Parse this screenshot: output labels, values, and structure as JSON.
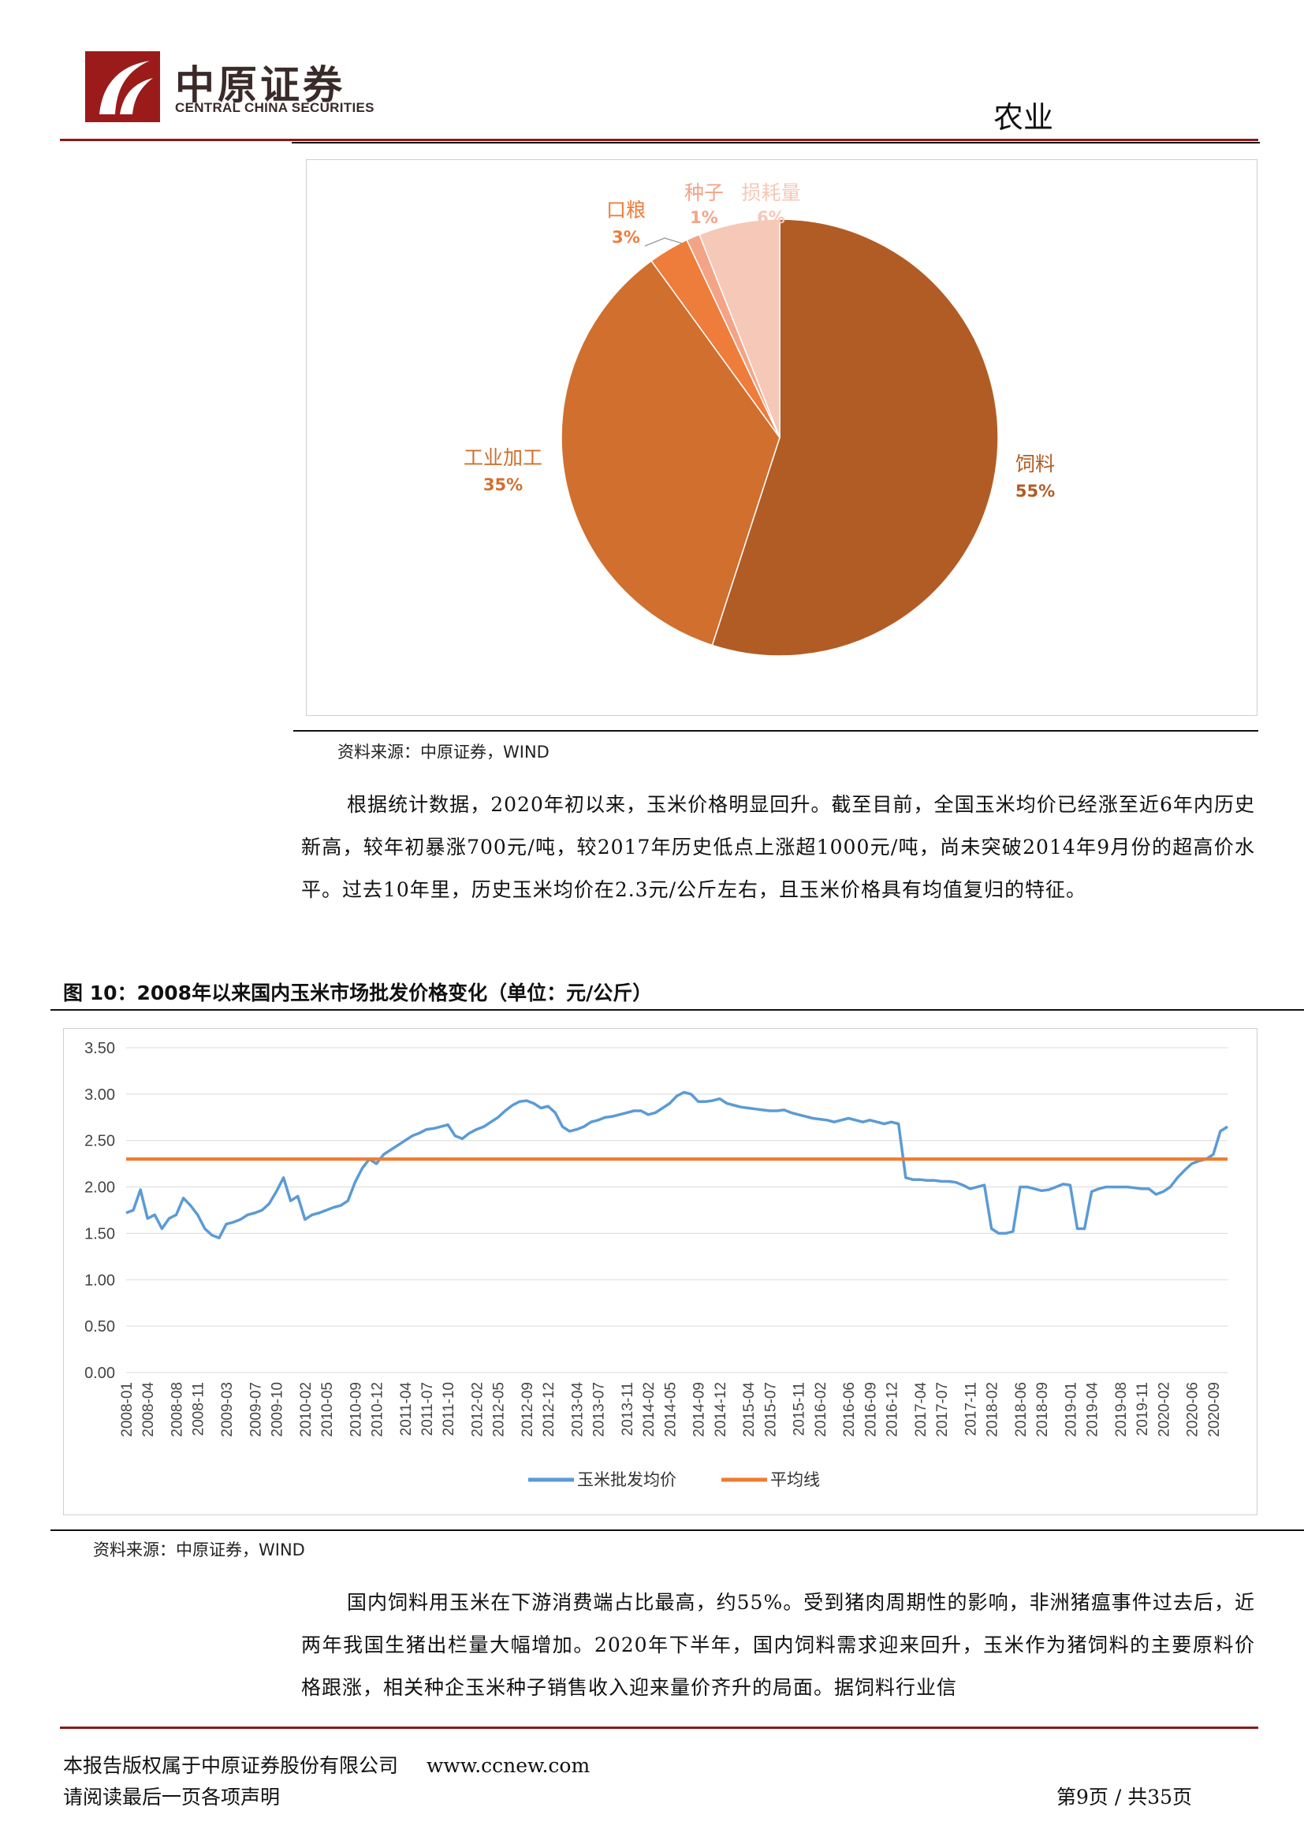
{
  "header": {
    "logo_cn": "中原证券",
    "logo_en": "CENTRAL CHINA SECURITIES",
    "industry": "农业"
  },
  "pie_chart": {
    "chart_data": {
      "type": "pie",
      "title": "",
      "slices": [
        {
          "label": "饲料",
          "pct_label": "55%",
          "value": 55,
          "color": "#b25c25"
        },
        {
          "label": "工业加工",
          "pct_label": "35%",
          "value": 35,
          "color": "#d16f2e"
        },
        {
          "label": "口粮",
          "pct_label": "3%",
          "value": 3,
          "color": "#ee7c3a"
        },
        {
          "label": "种子",
          "pct_label": "1%",
          "value": 1,
          "color": "#f4a486"
        },
        {
          "label": "损耗量",
          "pct_label": "6%",
          "value": 6,
          "color": "#f5c8b8"
        }
      ],
      "legend": "none"
    },
    "source": "资料来源：中原证券，WIND"
  },
  "paragraph1": "根据统计数据，2020年初以来，玉米价格明显回升。截至目前，全国玉米均价已经涨至近6年内历史新高，较年初暴涨700元/吨，较2017年历史低点上涨超1000元/吨，尚未突破2014年9月份的超高价水平。过去10年里，历史玉米均价在2.3元/公斤左右，且玉米价格具有均值复归的特征。",
  "line_chart": {
    "figure_title": "图 10：2008年以来国内玉米市场批发价格变化（单位：元/公斤）",
    "source": "资料来源：中原证券，WIND",
    "chart_data": {
      "type": "line",
      "ylim": [
        0,
        3.5
      ],
      "y_ticks": [
        "0.00",
        "0.50",
        "1.00",
        "1.50",
        "2.00",
        "2.50",
        "3.00",
        "3.50"
      ],
      "x_ticks": [
        "2008-01",
        "2008-04",
        "2008-08",
        "2008-11",
        "2009-03",
        "2009-07",
        "2009-10",
        "2010-02",
        "2010-05",
        "2010-09",
        "2010-12",
        "2011-04",
        "2011-07",
        "2011-10",
        "2012-02",
        "2012-05",
        "2012-09",
        "2012-12",
        "2013-04",
        "2013-07",
        "2013-11",
        "2014-02",
        "2014-05",
        "2014-09",
        "2014-12",
        "2015-04",
        "2015-07",
        "2015-11",
        "2016-02",
        "2016-06",
        "2016-09",
        "2016-12",
        "2017-04",
        "2017-07",
        "2017-11",
        "2018-02",
        "2018-06",
        "2018-09",
        "2019-01",
        "2019-04",
        "2019-08",
        "2019-11",
        "2020-02",
        "2020-06",
        "2020-09"
      ],
      "series": [
        {
          "name": "玉米批发均价",
          "color": "#5b9bd5",
          "points": [
            [
              "2008-01",
              1.72
            ],
            [
              "2008-02",
              1.75
            ],
            [
              "2008-03",
              1.97
            ],
            [
              "2008-04",
              1.66
            ],
            [
              "2008-05",
              1.7
            ],
            [
              "2008-06",
              1.55
            ],
            [
              "2008-07",
              1.66
            ],
            [
              "2008-08",
              1.7
            ],
            [
              "2008-09",
              1.88
            ],
            [
              "2008-10",
              1.8
            ],
            [
              "2008-11",
              1.7
            ],
            [
              "2008-12",
              1.55
            ],
            [
              "2009-01",
              1.48
            ],
            [
              "2009-02",
              1.45
            ],
            [
              "2009-03",
              1.6
            ],
            [
              "2009-04",
              1.62
            ],
            [
              "2009-05",
              1.65
            ],
            [
              "2009-06",
              1.7
            ],
            [
              "2009-07",
              1.72
            ],
            [
              "2009-08",
              1.75
            ],
            [
              "2009-09",
              1.82
            ],
            [
              "2009-10",
              1.95
            ],
            [
              "2009-11",
              2.1
            ],
            [
              "2009-12",
              1.85
            ],
            [
              "2010-01",
              1.9
            ],
            [
              "2010-02",
              1.65
            ],
            [
              "2010-03",
              1.7
            ],
            [
              "2010-04",
              1.72
            ],
            [
              "2010-05",
              1.75
            ],
            [
              "2010-06",
              1.78
            ],
            [
              "2010-07",
              1.8
            ],
            [
              "2010-08",
              1.85
            ],
            [
              "2010-09",
              2.05
            ],
            [
              "2010-10",
              2.2
            ],
            [
              "2010-11",
              2.3
            ],
            [
              "2010-12",
              2.25
            ],
            [
              "2011-01",
              2.35
            ],
            [
              "2011-02",
              2.4
            ],
            [
              "2011-03",
              2.45
            ],
            [
              "2011-04",
              2.5
            ],
            [
              "2011-05",
              2.55
            ],
            [
              "2011-06",
              2.58
            ],
            [
              "2011-07",
              2.62
            ],
            [
              "2011-08",
              2.63
            ],
            [
              "2011-09",
              2.65
            ],
            [
              "2011-10",
              2.67
            ],
            [
              "2011-11",
              2.55
            ],
            [
              "2011-12",
              2.52
            ],
            [
              "2012-01",
              2.58
            ],
            [
              "2012-02",
              2.62
            ],
            [
              "2012-03",
              2.65
            ],
            [
              "2012-04",
              2.7
            ],
            [
              "2012-05",
              2.75
            ],
            [
              "2012-06",
              2.82
            ],
            [
              "2012-07",
              2.88
            ],
            [
              "2012-08",
              2.92
            ],
            [
              "2012-09",
              2.93
            ],
            [
              "2012-10",
              2.9
            ],
            [
              "2012-11",
              2.85
            ],
            [
              "2012-12",
              2.87
            ],
            [
              "2013-01",
              2.8
            ],
            [
              "2013-02",
              2.65
            ],
            [
              "2013-03",
              2.6
            ],
            [
              "2013-04",
              2.62
            ],
            [
              "2013-05",
              2.65
            ],
            [
              "2013-06",
              2.7
            ],
            [
              "2013-07",
              2.72
            ],
            [
              "2013-08",
              2.75
            ],
            [
              "2013-09",
              2.76
            ],
            [
              "2013-10",
              2.78
            ],
            [
              "2013-11",
              2.8
            ],
            [
              "2013-12",
              2.82
            ],
            [
              "2014-01",
              2.82
            ],
            [
              "2014-02",
              2.78
            ],
            [
              "2014-03",
              2.8
            ],
            [
              "2014-04",
              2.85
            ],
            [
              "2014-05",
              2.9
            ],
            [
              "2014-06",
              2.98
            ],
            [
              "2014-07",
              3.02
            ],
            [
              "2014-08",
              3.0
            ],
            [
              "2014-09",
              2.92
            ],
            [
              "2014-10",
              2.92
            ],
            [
              "2014-11",
              2.93
            ],
            [
              "2014-12",
              2.95
            ],
            [
              "2015-01",
              2.9
            ],
            [
              "2015-02",
              2.88
            ],
            [
              "2015-03",
              2.86
            ],
            [
              "2015-04",
              2.85
            ],
            [
              "2015-05",
              2.84
            ],
            [
              "2015-06",
              2.83
            ],
            [
              "2015-07",
              2.82
            ],
            [
              "2015-08",
              2.82
            ],
            [
              "2015-09",
              2.83
            ],
            [
              "2015-10",
              2.8
            ],
            [
              "2015-11",
              2.78
            ],
            [
              "2015-12",
              2.76
            ],
            [
              "2016-01",
              2.74
            ],
            [
              "2016-02",
              2.73
            ],
            [
              "2016-03",
              2.72
            ],
            [
              "2016-04",
              2.7
            ],
            [
              "2016-05",
              2.72
            ],
            [
              "2016-06",
              2.74
            ],
            [
              "2016-07",
              2.72
            ],
            [
              "2016-08",
              2.7
            ],
            [
              "2016-09",
              2.72
            ],
            [
              "2016-10",
              2.7
            ],
            [
              "2016-11",
              2.68
            ],
            [
              "2016-12",
              2.7
            ],
            [
              "2017-01",
              2.68
            ],
            [
              "2017-02",
              2.1
            ],
            [
              "2017-03",
              2.08
            ],
            [
              "2017-04",
              2.08
            ],
            [
              "2017-05",
              2.07
            ],
            [
              "2017-06",
              2.07
            ],
            [
              "2017-07",
              2.06
            ],
            [
              "2017-08",
              2.06
            ],
            [
              "2017-09",
              2.05
            ],
            [
              "2017-10",
              2.02
            ],
            [
              "2017-11",
              1.98
            ],
            [
              "2017-12",
              2.0
            ],
            [
              "2018-01",
              2.02
            ],
            [
              "2018-02",
              1.55
            ],
            [
              "2018-03",
              1.5
            ],
            [
              "2018-04",
              1.5
            ],
            [
              "2018-05",
              1.52
            ],
            [
              "2018-06",
              2.0
            ],
            [
              "2018-07",
              2.0
            ],
            [
              "2018-08",
              1.98
            ],
            [
              "2018-09",
              1.96
            ],
            [
              "2018-10",
              1.97
            ],
            [
              "2018-11",
              2.0
            ],
            [
              "2018-12",
              2.03
            ],
            [
              "2019-01",
              2.02
            ],
            [
              "2019-02",
              1.55
            ],
            [
              "2019-03",
              1.55
            ],
            [
              "2019-04",
              1.95
            ],
            [
              "2019-05",
              1.98
            ],
            [
              "2019-06",
              2.0
            ],
            [
              "2019-07",
              2.0
            ],
            [
              "2019-08",
              2.0
            ],
            [
              "2019-09",
              2.0
            ],
            [
              "2019-10",
              1.99
            ],
            [
              "2019-11",
              1.98
            ],
            [
              "2019-12",
              1.98
            ],
            [
              "2020-01",
              1.92
            ],
            [
              "2020-02",
              1.95
            ],
            [
              "2020-03",
              2.0
            ],
            [
              "2020-04",
              2.1
            ],
            [
              "2020-05",
              2.18
            ],
            [
              "2020-06",
              2.25
            ],
            [
              "2020-07",
              2.28
            ],
            [
              "2020-08",
              2.3
            ],
            [
              "2020-09",
              2.35
            ],
            [
              "2020-10",
              2.6
            ],
            [
              "2020-11",
              2.65
            ]
          ]
        },
        {
          "name": "平均线",
          "color": "#ed7d31",
          "constant": 2.3
        }
      ],
      "legend": "bottom-center"
    }
  },
  "paragraph2": "国内饲料用玉米在下游消费端占比最高，约55%。受到猪肉周期性的影响，非洲猪瘟事件过去后，近两年我国生猪出栏量大幅增加。2020年下半年，国内饲料需求迎来回升，玉米作为猪饲料的主要原料价格跟涨，相关种企玉米种子销售收入迎来量价齐升的局面。据饲料行业信",
  "footer": {
    "copyright": "本报告版权属于中原证券股份有限公司",
    "website": "www.ccnew.com",
    "notice": "请阅读最后一页各项声明",
    "page": "第9页 / 共35页"
  }
}
